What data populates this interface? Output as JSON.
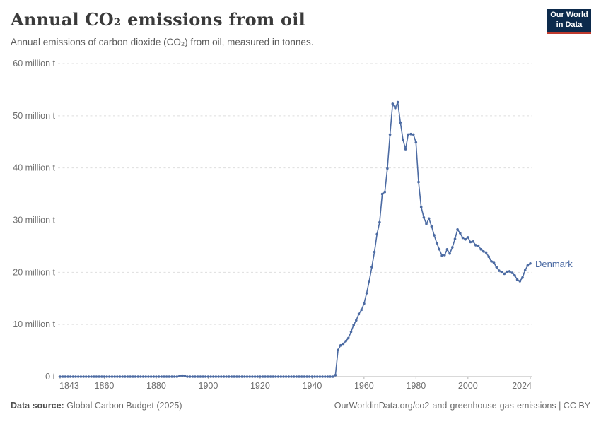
{
  "header": {
    "title": "Annual CO₂ emissions from oil",
    "subtitle": "Annual emissions of carbon dioxide (CO₂) from oil, measured in tonnes.",
    "logo": {
      "line1": "Our World",
      "line2": "in Data",
      "bg_color": "#0c2a4c",
      "bar_color": "#bf3a2e"
    }
  },
  "footer": {
    "source_label": "Data source:",
    "source_value": " Global Carbon Budget (2025)",
    "link": "OurWorldinData.org/co2-and-greenhouse-gas-emissions | CC BY"
  },
  "chart_data": {
    "type": "line",
    "title": "Annual CO₂ emissions from oil",
    "xlabel": "",
    "ylabel": "",
    "unit": "million t",
    "grid": "dashed-horizontal",
    "legend": "end-of-line-label",
    "x": {
      "min": 1843,
      "max": 2024,
      "ticks": [
        1843,
        1860,
        1880,
        1900,
        1920,
        1940,
        1960,
        1980,
        2000,
        2024
      ]
    },
    "y": {
      "min": 0,
      "max": 60,
      "ticks": [
        0,
        10,
        20,
        30,
        40,
        50,
        60
      ],
      "tick_labels": [
        "0 t",
        "10 million t",
        "20 million t",
        "30 million t",
        "40 million t",
        "50 million t",
        "60 million t"
      ]
    },
    "series": [
      {
        "name": "Denmark",
        "color": "#4c6ba3",
        "start_year": 1843,
        "values": [
          0,
          0,
          0,
          0,
          0,
          0,
          0,
          0,
          0,
          0,
          0,
          0,
          0,
          0,
          0,
          0,
          0,
          0,
          0,
          0,
          0,
          0,
          0,
          0,
          0,
          0,
          0,
          0,
          0,
          0,
          0,
          0,
          0,
          0,
          0,
          0,
          0,
          0,
          0,
          0,
          0,
          0,
          0,
          0,
          0,
          0,
          0.15,
          0.2,
          0.15,
          0,
          0,
          0,
          0,
          0,
          0,
          0,
          0,
          0,
          0,
          0,
          0,
          0,
          0,
          0,
          0,
          0,
          0,
          0,
          0,
          0,
          0,
          0,
          0,
          0,
          0,
          0,
          0,
          0,
          0,
          0,
          0,
          0,
          0,
          0,
          0,
          0,
          0,
          0,
          0,
          0,
          0,
          0,
          0,
          0,
          0,
          0,
          0,
          0,
          0,
          0,
          0,
          0,
          0,
          0,
          0,
          0,
          0.3,
          5.1,
          6.0,
          6.3,
          6.8,
          7.4,
          8.6,
          9.9,
          10.8,
          12.0,
          12.8,
          14.0,
          16.0,
          18.3,
          21.0,
          23.9,
          27.3,
          29.6,
          35.0,
          35.4,
          39.9,
          46.4,
          52.3,
          51.5,
          52.6,
          48.7,
          45.4,
          43.6,
          46.4,
          46.5,
          46.4,
          44.9,
          37.3,
          32.5,
          30.5,
          29.3,
          30.3,
          28.8,
          27.1,
          25.6,
          24.4,
          23.2,
          23.3,
          24.4,
          23.6,
          24.8,
          26.4,
          28.2,
          27.5,
          26.6,
          26.3,
          26.7,
          25.8,
          25.9,
          25.2,
          25.1,
          24.4,
          24.0,
          23.8,
          23.0,
          22.1,
          21.8,
          21.0,
          20.3,
          20.0,
          19.7,
          20.1,
          20.2,
          19.9,
          19.4,
          18.6,
          18.3,
          19.0,
          20.4,
          21.3,
          21.7
        ]
      }
    ]
  },
  "style": {
    "grid_color": "#dedede",
    "axis_color": "#b3b3b3",
    "axis_label_color": "#6e6e6e"
  }
}
